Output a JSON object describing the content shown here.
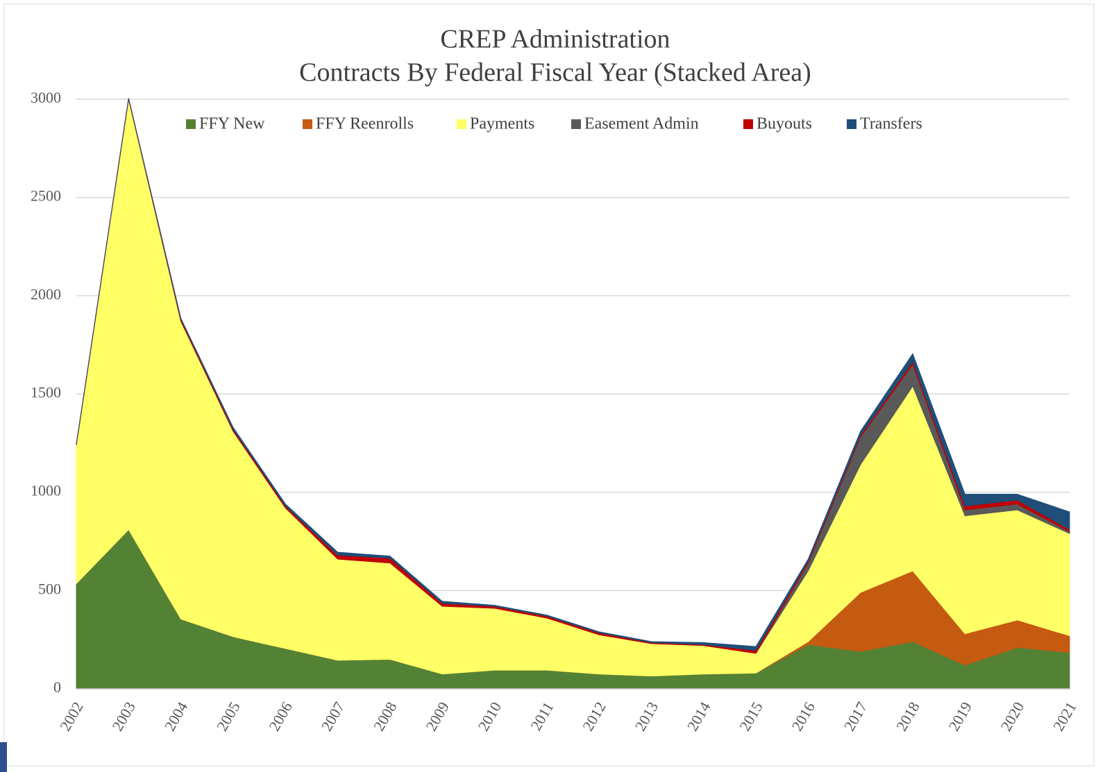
{
  "chart_data": {
    "type": "stacked_area",
    "title": "CREP Administration",
    "subtitle": "Contracts By Federal Fiscal Year (Stacked Area)",
    "categories": [
      "2002",
      "2003",
      "2004",
      "2005",
      "2006",
      "2007",
      "2008",
      "2009",
      "2010",
      "2011",
      "2012",
      "2013",
      "2014",
      "2015",
      "2016",
      "2017",
      "2018",
      "2019",
      "2020",
      "2021"
    ],
    "series": [
      {
        "name": "FFY New",
        "color": "#548235",
        "values": [
          535,
          810,
          355,
          265,
          205,
          145,
          150,
          75,
          95,
          95,
          75,
          65,
          75,
          80,
          225,
          190,
          240,
          120,
          210,
          185
        ]
      },
      {
        "name": "FFY Reenrolls",
        "color": "#c55a11",
        "values": [
          0,
          0,
          0,
          0,
          0,
          0,
          0,
          0,
          0,
          0,
          0,
          0,
          0,
          0,
          15,
          300,
          360,
          160,
          140,
          85
        ]
      },
      {
        "name": "Payments",
        "color": "#ffff66",
        "values": [
          705,
          2190,
          1515,
          1045,
          715,
          515,
          490,
          345,
          315,
          265,
          200,
          165,
          145,
          100,
          360,
          650,
          940,
          600,
          560,
          520
        ]
      },
      {
        "name": "Easement Admin",
        "color": "#595959",
        "values": [
          0,
          0,
          0,
          0,
          0,
          0,
          0,
          0,
          0,
          0,
          0,
          0,
          0,
          0,
          40,
          140,
          110,
          30,
          30,
          10
        ]
      },
      {
        "name": "Buyouts",
        "color": "#c00000",
        "values": [
          5,
          5,
          10,
          10,
          10,
          20,
          25,
          15,
          10,
          10,
          10,
          5,
          5,
          15,
          10,
          10,
          15,
          20,
          20,
          10
        ]
      },
      {
        "name": "Transfers",
        "color": "#1f4e79",
        "values": [
          0,
          0,
          5,
          10,
          10,
          15,
          10,
          10,
          5,
          5,
          5,
          5,
          10,
          20,
          10,
          20,
          40,
          60,
          30,
          90
        ]
      }
    ],
    "ylim": [
      0,
      3000
    ],
    "yticks": [
      0,
      500,
      1000,
      1500,
      2000,
      2500,
      3000
    ],
    "grid": true
  }
}
